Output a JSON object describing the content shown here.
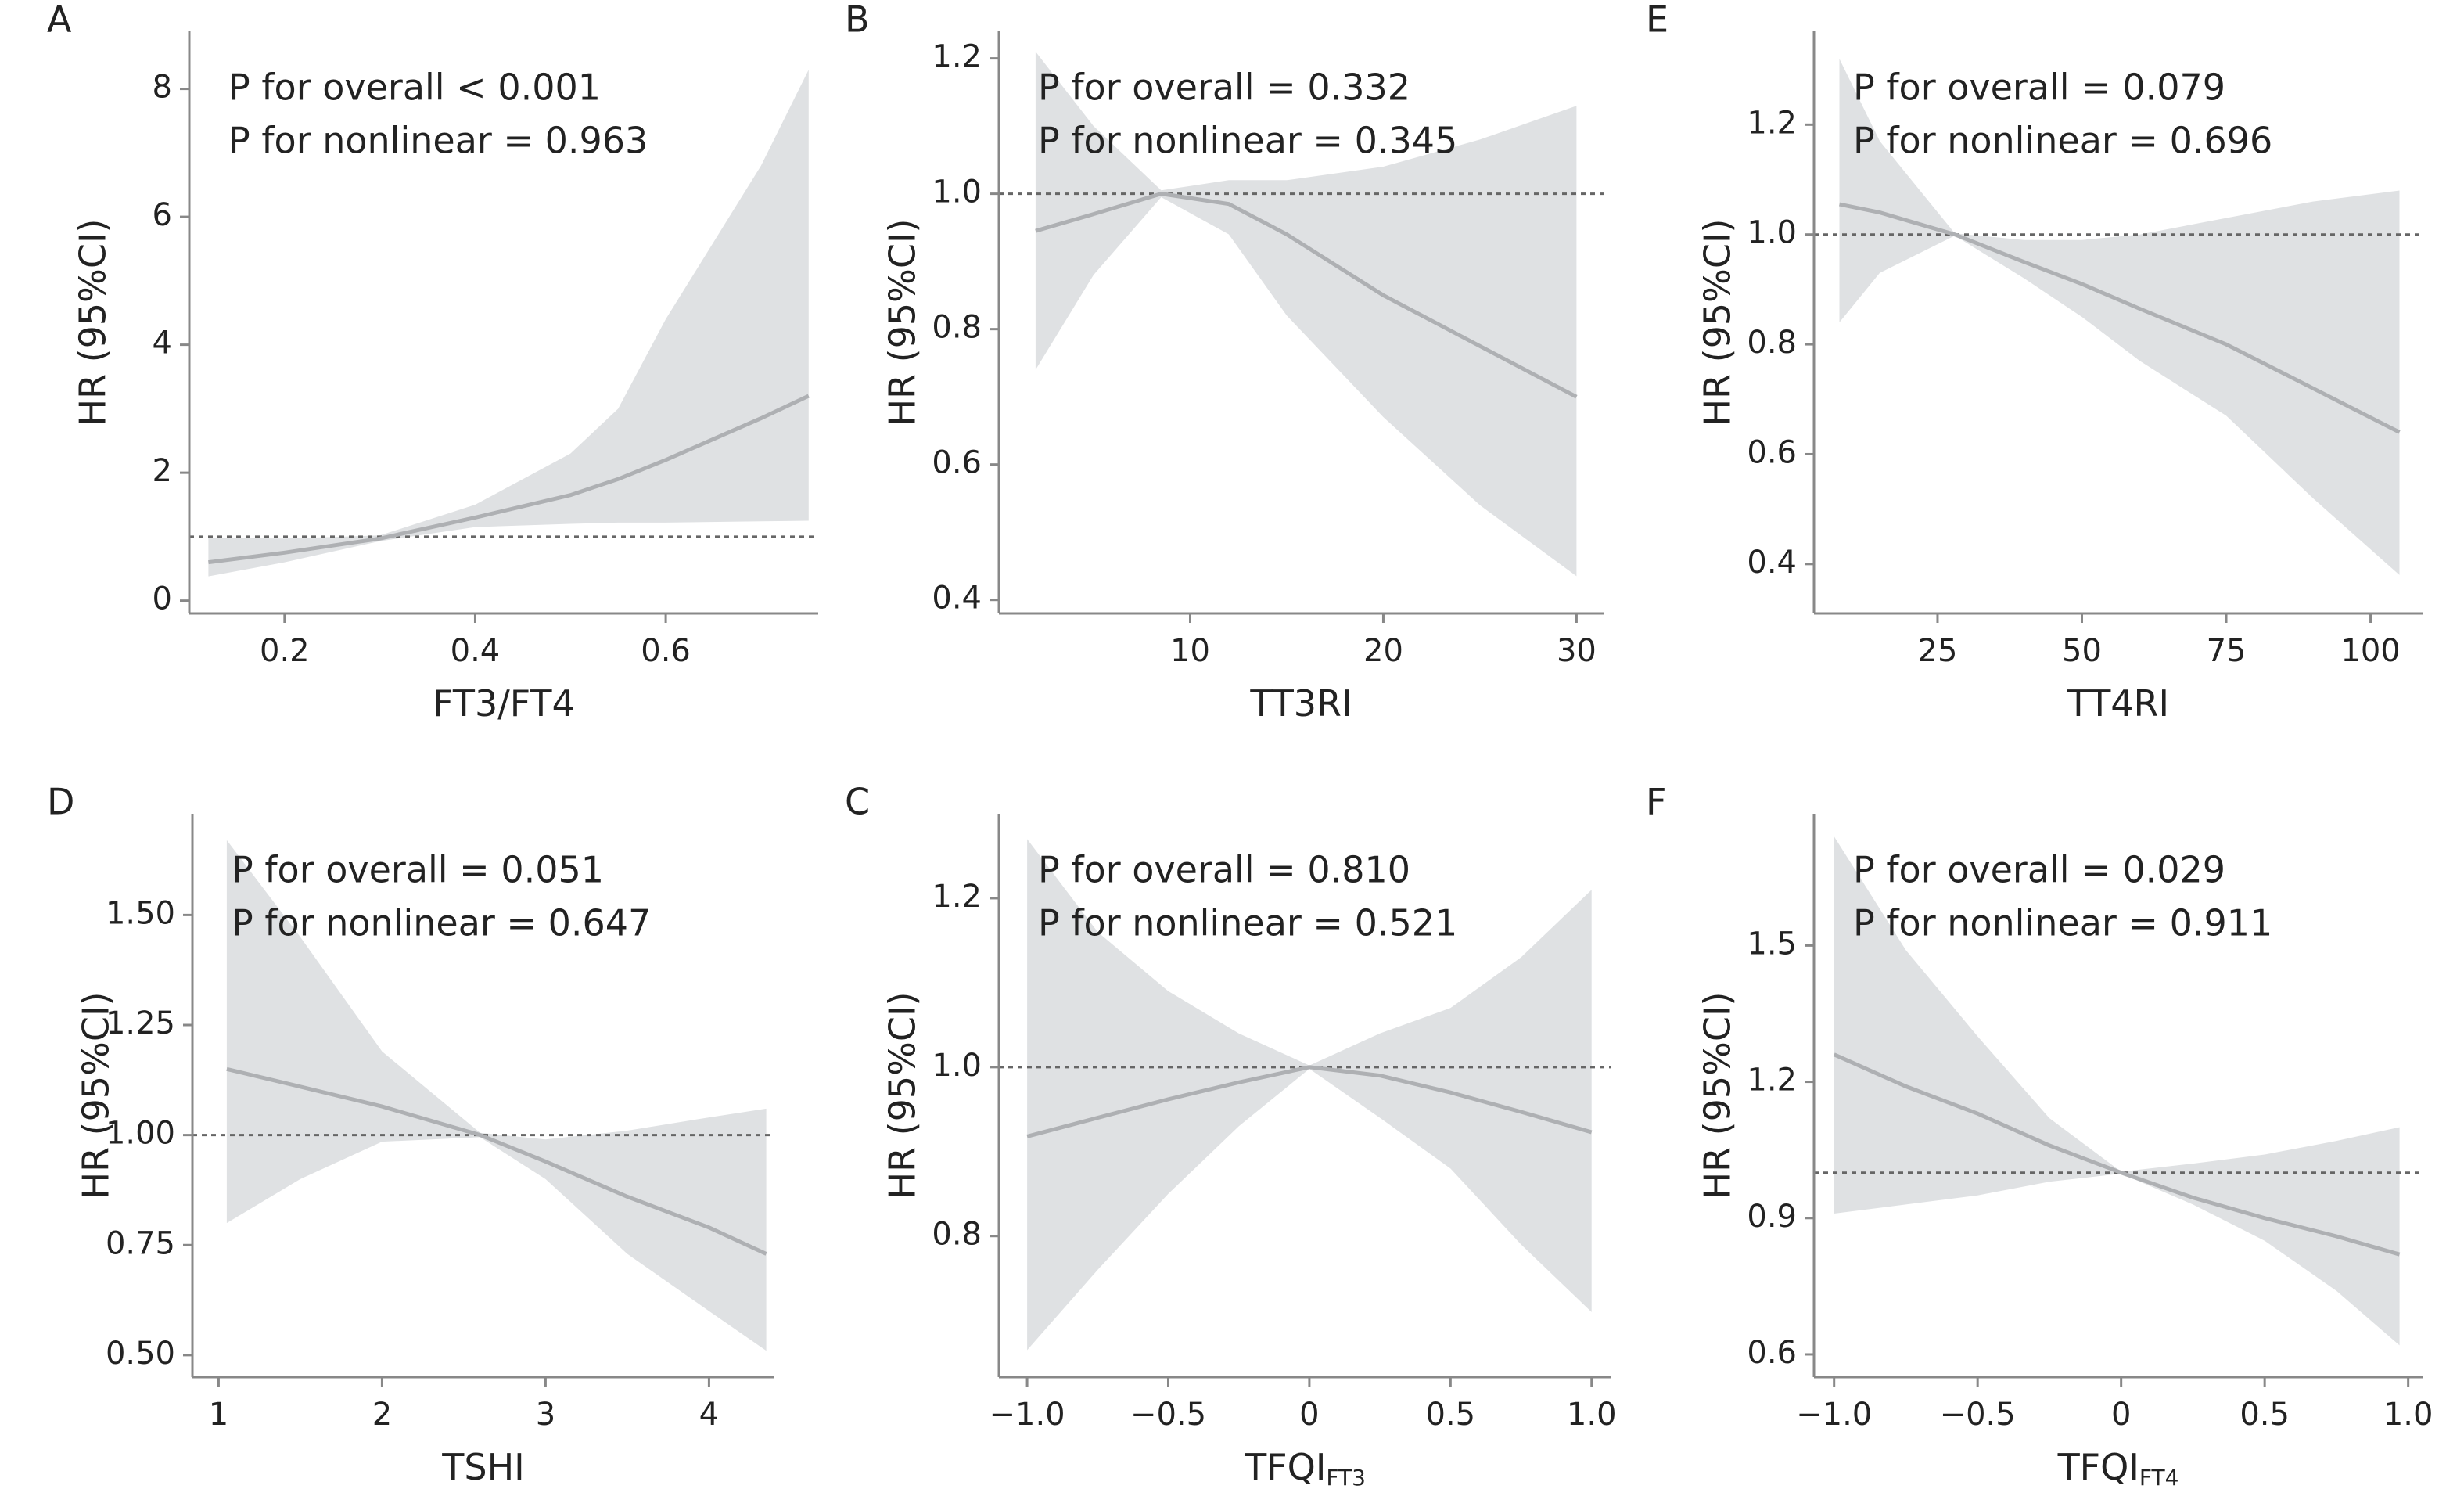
{
  "chart_data": [
    {
      "type": "line",
      "panel_label": "A",
      "annotations": [
        "P for overall < 0.001",
        "P for nonlinear = 0.963"
      ],
      "x_label": "FT3/FT4",
      "y_label": "HR (95%CI)",
      "x": [
        0.12,
        0.2,
        0.3,
        0.4,
        0.5,
        0.55,
        0.6,
        0.7,
        0.75
      ],
      "values": [
        0.6,
        0.75,
        0.97,
        1.3,
        1.65,
        1.9,
        2.2,
        2.85,
        3.2
      ],
      "lower": [
        0.38,
        0.6,
        0.93,
        1.15,
        1.2,
        1.22,
        1.22,
        1.24,
        1.25
      ],
      "upper": [
        0.98,
        0.97,
        1.02,
        1.5,
        2.3,
        3.0,
        4.4,
        6.8,
        8.3
      ],
      "refline": 1,
      "line_color": "#aeb0b3",
      "band_color": "#dfe1e3",
      "xlim": [
        0.1,
        0.76
      ],
      "ylim": [
        -0.2,
        8.9
      ],
      "xticks": [
        0.2,
        0.4,
        0.6
      ],
      "yticks": [
        0,
        2,
        4,
        6,
        8
      ]
    },
    {
      "type": "line",
      "panel_label": "B",
      "annotations": [
        "P for overall = 0.332",
        "P for nonlinear = 0.345"
      ],
      "x_label": "TT3RI",
      "y_label": "HR (95%CI)",
      "x": [
        2,
        5,
        8.5,
        12,
        15,
        20,
        25,
        30
      ],
      "values": [
        0.945,
        0.97,
        1.0,
        0.985,
        0.94,
        0.85,
        0.775,
        0.7
      ],
      "lower": [
        0.74,
        0.88,
        0.995,
        0.94,
        0.82,
        0.67,
        0.54,
        0.435
      ],
      "upper": [
        1.21,
        1.1,
        1.005,
        1.02,
        1.02,
        1.04,
        1.08,
        1.13
      ],
      "refline": 1,
      "line_color": "#aeb0b3",
      "band_color": "#dfe1e3",
      "xlim": [
        0.1,
        31.4
      ],
      "ylim": [
        0.38,
        1.24
      ],
      "xticks": [
        10,
        20,
        30
      ],
      "yticks": [
        0.4,
        0.6,
        0.8,
        {
          "value": 1,
          "label": "1.0"
        },
        1.2
      ]
    },
    {
      "type": "line",
      "panel_label": "E",
      "annotations": [
        "P for overall = 0.079",
        "P for nonlinear = 0.696"
      ],
      "x_label": "TT4RI",
      "y_label": "HR (95%CI)",
      "x": [
        8,
        15,
        28,
        40,
        50,
        60,
        75,
        90,
        105
      ],
      "values": [
        1.055,
        1.04,
        1.0,
        0.95,
        0.91,
        0.865,
        0.8,
        0.72,
        0.64
      ],
      "lower": [
        0.84,
        0.93,
        0.998,
        0.92,
        0.85,
        0.77,
        0.67,
        0.52,
        0.38
      ],
      "upper": [
        1.32,
        1.17,
        1.002,
        0.99,
        0.99,
        1.0,
        1.03,
        1.06,
        1.08
      ],
      "refline": 1,
      "line_color": "#aeb0b3",
      "band_color": "#dfe1e3",
      "xlim": [
        3.6,
        109
      ],
      "ylim": [
        0.31,
        1.37
      ],
      "xticks": [
        25,
        50,
        75,
        100
      ],
      "yticks": [
        0.4,
        0.6,
        0.8,
        {
          "value": 1,
          "label": "1.0"
        },
        1.2
      ]
    },
    {
      "type": "line",
      "panel_label": "D",
      "annotations": [
        "P for overall = 0.051",
        "P for nonlinear = 0.647"
      ],
      "x_label": "TSHI",
      "y_label": "HR (95%CI)",
      "x": [
        1.05,
        1.5,
        2,
        2.6,
        3,
        3.5,
        4,
        4.35
      ],
      "values": [
        1.15,
        1.11,
        1.065,
        1.0,
        0.94,
        0.86,
        0.79,
        0.73
      ],
      "lower": [
        0.8,
        0.9,
        0.985,
        0.995,
        0.9,
        0.73,
        0.6,
        0.51
      ],
      "upper": [
        1.67,
        1.45,
        1.19,
        1.005,
        0.99,
        1.01,
        1.04,
        1.06
      ],
      "refline": 1,
      "line_color": "#aeb0b3",
      "band_color": "#dfe1e3",
      "xlim": [
        0.84,
        4.4
      ],
      "ylim": [
        0.45,
        1.73
      ],
      "xticks": [
        1,
        2,
        3,
        4
      ],
      "yticks": [
        {
          "value": 0.5,
          "label": "0.50"
        },
        0.75,
        {
          "value": 1,
          "label": "1.00"
        },
        1.25,
        {
          "value": 1.5,
          "label": "1.50"
        }
      ]
    },
    {
      "type": "line",
      "panel_label": "C",
      "annotations": [
        "P for overall = 0.810",
        "P for nonlinear = 0.521"
      ],
      "x_label": "TFQI",
      "x_label_sub": "FT3",
      "y_label": "HR (95%CI)",
      "x": [
        -1,
        -0.75,
        -0.5,
        -0.25,
        0,
        0.25,
        0.5,
        0.75,
        1
      ],
      "values": [
        0.918,
        0.94,
        0.962,
        0.982,
        1.0,
        0.99,
        0.97,
        0.947,
        0.923
      ],
      "lower": [
        0.665,
        0.76,
        0.85,
        0.93,
        0.998,
        0.94,
        0.88,
        0.79,
        0.71
      ],
      "upper": [
        1.27,
        1.16,
        1.09,
        1.04,
        1.002,
        1.04,
        1.07,
        1.13,
        1.21
      ],
      "refline": 1,
      "line_color": "#aeb0b3",
      "band_color": "#dfe1e3",
      "xlim": [
        -1.1,
        1.07
      ],
      "ylim": [
        0.633,
        1.3
      ],
      "xticks": [
        {
          "value": -1,
          "label": "−1.0"
        },
        {
          "value": -0.5,
          "label": "−0.5"
        },
        0,
        0.5,
        {
          "value": 1,
          "label": "1.0"
        }
      ],
      "yticks": [
        0.8,
        {
          "value": 1,
          "label": "1.0"
        },
        1.2
      ]
    },
    {
      "type": "line",
      "panel_label": "F",
      "annotations": [
        "P for overall = 0.029",
        "P for nonlinear = 0.911"
      ],
      "x_label": "TFQI",
      "x_label_sub": "FT4",
      "y_label": "HR (95%CI)",
      "x": [
        -1,
        -0.75,
        -0.5,
        -0.25,
        0,
        0.25,
        0.5,
        0.75,
        0.97
      ],
      "values": [
        1.26,
        1.19,
        1.13,
        1.06,
        1.0,
        0.945,
        0.9,
        0.86,
        0.82
      ],
      "lower": [
        0.91,
        0.93,
        0.95,
        0.98,
        0.998,
        0.93,
        0.85,
        0.74,
        0.62
      ],
      "upper": [
        1.74,
        1.49,
        1.3,
        1.12,
        1.002,
        1.02,
        1.04,
        1.07,
        1.1
      ],
      "refline": 1,
      "line_color": "#aeb0b3",
      "band_color": "#dfe1e3",
      "xlim": [
        -1.07,
        1.05
      ],
      "ylim": [
        0.55,
        1.79
      ],
      "xticks": [
        {
          "value": -1,
          "label": "−1.0"
        },
        {
          "value": -0.5,
          "label": "−0.5"
        },
        0,
        0.5,
        {
          "value": 1,
          "label": "1.0"
        }
      ],
      "yticks": [
        0.6,
        0.9,
        1.2,
        1.5
      ]
    }
  ]
}
